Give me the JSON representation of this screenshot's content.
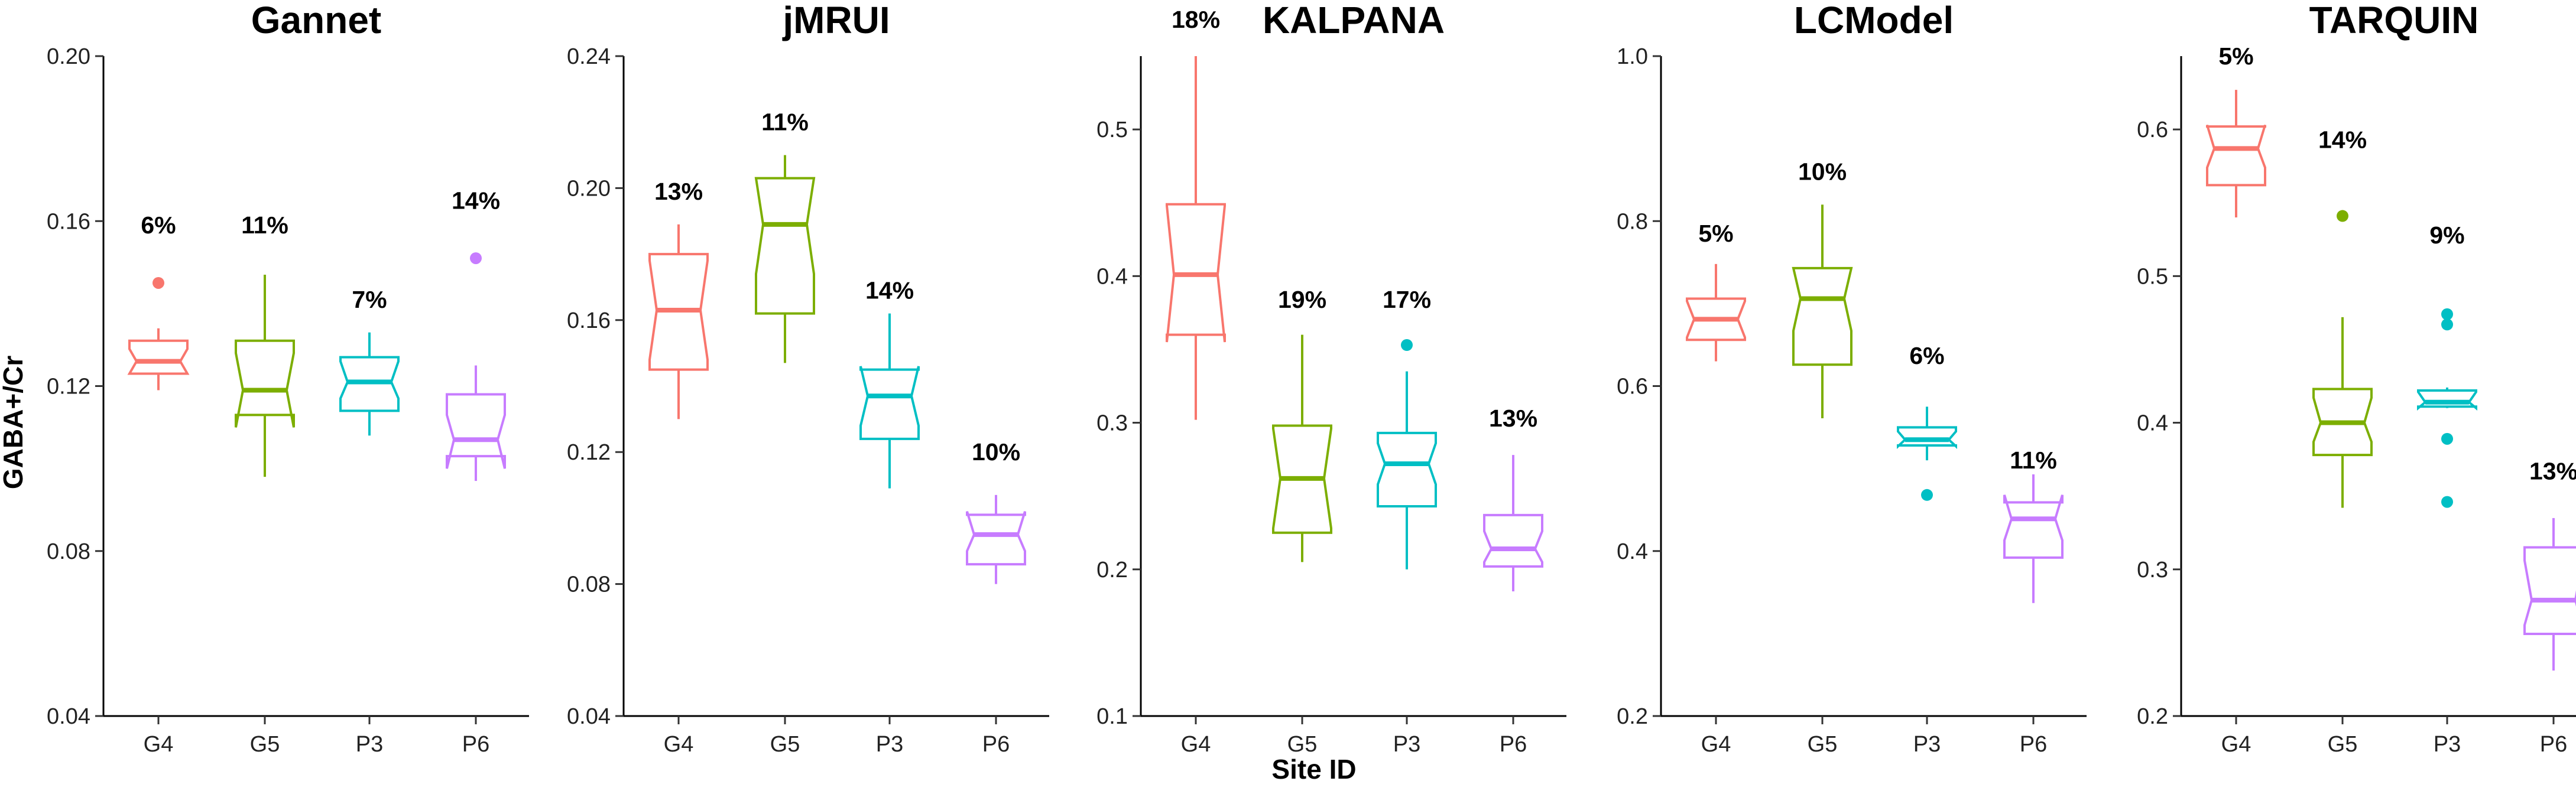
{
  "chart_data": {
    "type": "boxplot",
    "notched": true,
    "xlabel": "Site ID",
    "ylabel": "GABA+/Cr",
    "categories": [
      "G4",
      "G5",
      "P3",
      "P6"
    ],
    "colors": {
      "G4": "#F8766D",
      "G5": "#7CAE00",
      "P3": "#00BFC4",
      "P6": "#C77CFF"
    },
    "panels": [
      {
        "title": "Gannet",
        "ylim": [
          0.04,
          0.2
        ],
        "yticks": [
          0.04,
          0.08,
          0.12,
          0.16,
          0.2
        ],
        "ytick_labels": [
          "0.04",
          "0.08",
          "0.12",
          "0.16",
          "0.20"
        ],
        "boxes": [
          {
            "site": "G4",
            "min": 0.119,
            "q1": 0.123,
            "median": 0.126,
            "q3": 0.131,
            "max": 0.134,
            "notch_low": 0.123,
            "notch_high": 0.129,
            "outliers": [
              0.145
            ],
            "cv_label": "6%",
            "cv_y": 0.159
          },
          {
            "site": "G5",
            "min": 0.098,
            "q1": 0.113,
            "median": 0.119,
            "q3": 0.131,
            "max": 0.147,
            "notch_low": 0.11,
            "notch_high": 0.128,
            "outliers": [],
            "cv_label": "11%",
            "cv_y": 0.159
          },
          {
            "site": "P3",
            "min": 0.108,
            "q1": 0.114,
            "median": 0.121,
            "q3": 0.127,
            "max": 0.133,
            "notch_low": 0.117,
            "notch_high": 0.126,
            "outliers": [],
            "cv_label": "7%",
            "cv_y": 0.141
          },
          {
            "site": "P6",
            "min": 0.097,
            "q1": 0.103,
            "median": 0.107,
            "q3": 0.118,
            "max": 0.125,
            "notch_low": 0.1,
            "notch_high": 0.113,
            "outliers": [
              0.151
            ],
            "cv_label": "14%",
            "cv_y": 0.165
          }
        ]
      },
      {
        "title": "jMRUI",
        "ylim": [
          0.04,
          0.24
        ],
        "yticks": [
          0.04,
          0.08,
          0.12,
          0.16,
          0.2,
          0.24
        ],
        "ytick_labels": [
          "0.04",
          "0.08",
          "0.12",
          "0.16",
          "0.20",
          "0.24"
        ],
        "boxes": [
          {
            "site": "G4",
            "min": 0.13,
            "q1": 0.145,
            "median": 0.163,
            "q3": 0.18,
            "max": 0.189,
            "notch_low": 0.148,
            "notch_high": 0.178,
            "outliers": [],
            "cv_label": "13%",
            "cv_y": 0.199
          },
          {
            "site": "G5",
            "min": 0.147,
            "q1": 0.162,
            "median": 0.189,
            "q3": 0.203,
            "max": 0.21,
            "notch_low": 0.174,
            "notch_high": 0.203,
            "outliers": [],
            "cv_label": "11%",
            "cv_y": 0.22
          },
          {
            "site": "P3",
            "min": 0.109,
            "q1": 0.124,
            "median": 0.137,
            "q3": 0.145,
            "max": 0.162,
            "notch_low": 0.128,
            "notch_high": 0.146,
            "outliers": [],
            "cv_label": "14%",
            "cv_y": 0.169
          },
          {
            "site": "P6",
            "min": 0.08,
            "q1": 0.086,
            "median": 0.095,
            "q3": 0.101,
            "max": 0.107,
            "notch_low": 0.09,
            "notch_high": 0.102,
            "outliers": [],
            "cv_label": "10%",
            "cv_y": 0.12
          }
        ]
      },
      {
        "title": "KALPANA",
        "ylim": [
          0.1,
          0.55
        ],
        "yticks": [
          0.1,
          0.2,
          0.3,
          0.4,
          0.5
        ],
        "ytick_labels": [
          "0.1",
          "0.2",
          "0.3",
          "0.4",
          "0.5"
        ],
        "boxes": [
          {
            "site": "G4",
            "min": 0.302,
            "q1": 0.36,
            "median": 0.401,
            "q3": 0.449,
            "max": 0.55,
            "notch_low": 0.355,
            "notch_high": 0.448,
            "outliers": [],
            "cv_label": "18%",
            "cv_y": 0.575
          },
          {
            "site": "G5",
            "min": 0.205,
            "q1": 0.225,
            "median": 0.262,
            "q3": 0.298,
            "max": 0.36,
            "notch_low": 0.228,
            "notch_high": 0.296,
            "outliers": [],
            "cv_label": "19%",
            "cv_y": 0.384
          },
          {
            "site": "P3",
            "min": 0.2,
            "q1": 0.243,
            "median": 0.272,
            "q3": 0.293,
            "max": 0.335,
            "notch_low": 0.258,
            "notch_high": 0.286,
            "outliers": [
              0.353
            ],
            "cv_label": "17%",
            "cv_y": 0.384
          },
          {
            "site": "P6",
            "min": 0.185,
            "q1": 0.202,
            "median": 0.214,
            "q3": 0.237,
            "max": 0.278,
            "notch_low": 0.205,
            "notch_high": 0.226,
            "outliers": [],
            "cv_label": "13%",
            "cv_y": 0.303
          }
        ]
      },
      {
        "title": "LCModel",
        "ylim": [
          0.2,
          1.0
        ],
        "yticks": [
          0.2,
          0.4,
          0.6,
          0.8,
          1.0
        ],
        "ytick_labels": [
          "0.2",
          "0.4",
          "0.6",
          "0.8",
          "1.0"
        ],
        "boxes": [
          {
            "site": "G4",
            "min": 0.63,
            "q1": 0.656,
            "median": 0.681,
            "q3": 0.706,
            "max": 0.748,
            "notch_low": 0.659,
            "notch_high": 0.703,
            "outliers": [],
            "cv_label": "5%",
            "cv_y": 0.785
          },
          {
            "site": "G5",
            "min": 0.561,
            "q1": 0.626,
            "median": 0.706,
            "q3": 0.743,
            "max": 0.82,
            "notch_low": 0.667,
            "notch_high": 0.743,
            "outliers": [],
            "cv_label": "10%",
            "cv_y": 0.86
          },
          {
            "site": "P3",
            "min": 0.51,
            "q1": 0.528,
            "median": 0.535,
            "q3": 0.55,
            "max": 0.575,
            "notch_low": 0.527,
            "notch_high": 0.545,
            "outliers": [
              0.468
            ],
            "cv_label": "6%",
            "cv_y": 0.637
          },
          {
            "site": "P6",
            "min": 0.337,
            "q1": 0.392,
            "median": 0.439,
            "q3": 0.459,
            "max": 0.493,
            "notch_low": 0.413,
            "notch_high": 0.468,
            "outliers": [],
            "cv_label": "11%",
            "cv_y": 0.51
          }
        ]
      },
      {
        "title": "TARQUIN",
        "ylim": [
          0.2,
          0.65
        ],
        "yticks": [
          0.2,
          0.3,
          0.4,
          0.5,
          0.6
        ],
        "ytick_labels": [
          "0.2",
          "0.3",
          "0.4",
          "0.5",
          "0.6"
        ],
        "boxes": [
          {
            "site": "G4",
            "min": 0.54,
            "q1": 0.562,
            "median": 0.587,
            "q3": 0.602,
            "max": 0.627,
            "notch_low": 0.574,
            "notch_high": 0.603,
            "outliers": [],
            "cv_label": "5%",
            "cv_y": 0.65
          },
          {
            "site": "G5",
            "min": 0.342,
            "q1": 0.378,
            "median": 0.4,
            "q3": 0.423,
            "max": 0.472,
            "notch_low": 0.387,
            "notch_high": 0.417,
            "outliers": [
              0.541
            ],
            "cv_label": "14%",
            "cv_y": 0.593
          },
          {
            "site": "P3",
            "min": 0.41,
            "q1": 0.411,
            "median": 0.414,
            "q3": 0.422,
            "max": 0.424,
            "notch_low": 0.41,
            "notch_high": 0.421,
            "outliers": [
              0.474,
              0.467,
              0.389,
              0.346
            ],
            "cv_label": "9%",
            "cv_y": 0.528
          },
          {
            "site": "P6",
            "min": 0.231,
            "q1": 0.256,
            "median": 0.279,
            "q3": 0.315,
            "max": 0.335,
            "notch_low": 0.262,
            "notch_high": 0.306,
            "outliers": [],
            "cv_label": "13%",
            "cv_y": 0.367
          }
        ]
      }
    ]
  }
}
